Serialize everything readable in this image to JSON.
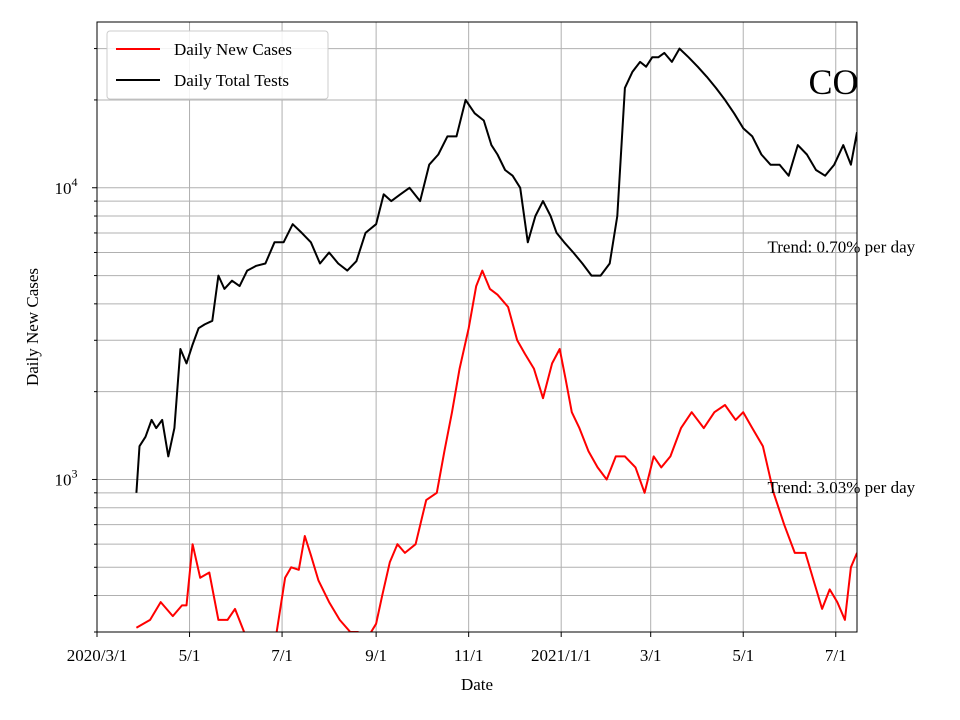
{
  "chart_data": {
    "type": "line",
    "xlabel": "Date",
    "ylabel": "Daily New Cases",
    "yscale": "log",
    "ylim": [
      300,
      37000
    ],
    "xlim": [
      "2020-03-01",
      "2021-07-15"
    ],
    "grid": true,
    "legend_position": "top-left",
    "x_ticks": [
      {
        "date": "2020-03-01",
        "label": "2020/3/1"
      },
      {
        "date": "2020-05-01",
        "label": "5/1"
      },
      {
        "date": "2020-07-01",
        "label": "7/1"
      },
      {
        "date": "2020-09-01",
        "label": "9/1"
      },
      {
        "date": "2020-11-01",
        "label": "11/1"
      },
      {
        "date": "2021-01-01",
        "label": "2021/1/1"
      },
      {
        "date": "2021-03-01",
        "label": "3/1"
      },
      {
        "date": "2021-05-01",
        "label": "5/1"
      },
      {
        "date": "2021-07-01",
        "label": "7/1"
      }
    ],
    "y_ticks": [
      {
        "value": 1000,
        "base": "10",
        "exp": "3"
      },
      {
        "value": 10000,
        "base": "10",
        "exp": "4"
      }
    ],
    "series": [
      {
        "name": "Daily New Cases",
        "color": "#ff0000",
        "x": [
          "2020-03-27",
          "2020-04-05",
          "2020-04-12",
          "2020-04-20",
          "2020-04-26",
          "2020-04-29",
          "2020-05-03",
          "2020-05-08",
          "2020-05-14",
          "2020-05-20",
          "2020-05-26",
          "2020-05-31",
          "2020-06-06",
          "2020-06-15",
          "2020-06-27",
          "2020-07-03",
          "2020-07-07",
          "2020-07-12",
          "2020-07-16",
          "2020-07-20",
          "2020-07-25",
          "2020-08-01",
          "2020-08-08",
          "2020-08-15",
          "2020-08-20",
          "2020-08-27",
          "2020-09-01",
          "2020-09-05",
          "2020-09-10",
          "2020-09-15",
          "2020-09-20",
          "2020-09-27",
          "2020-10-04",
          "2020-10-11",
          "2020-10-16",
          "2020-10-21",
          "2020-10-26",
          "2020-11-01",
          "2020-11-06",
          "2020-11-10",
          "2020-11-15",
          "2020-11-20",
          "2020-11-27",
          "2020-12-03",
          "2020-12-08",
          "2020-12-14",
          "2020-12-20",
          "2020-12-26",
          "2020-12-31",
          "2021-01-04",
          "2021-01-08",
          "2021-01-13",
          "2021-01-19",
          "2021-01-25",
          "2021-01-31",
          "2021-02-06",
          "2021-02-12",
          "2021-02-19",
          "2021-02-25",
          "2021-03-03",
          "2021-03-08",
          "2021-03-14",
          "2021-03-21",
          "2021-03-28",
          "2021-04-05",
          "2021-04-12",
          "2021-04-19",
          "2021-04-26",
          "2021-05-01",
          "2021-05-07",
          "2021-05-14",
          "2021-05-21",
          "2021-05-28",
          "2021-06-04",
          "2021-06-11",
          "2021-06-17",
          "2021-06-22",
          "2021-06-27",
          "2021-07-02",
          "2021-07-07",
          "2021-07-11",
          "2021-07-15"
        ],
        "values": [
          310,
          330,
          380,
          340,
          370,
          370,
          600,
          460,
          480,
          330,
          330,
          360,
          300,
          280,
          290,
          460,
          500,
          490,
          640,
          550,
          450,
          380,
          330,
          300,
          300,
          290,
          320,
          400,
          520,
          600,
          560,
          600,
          850,
          900,
          1250,
          1700,
          2400,
          3300,
          4600,
          5200,
          4500,
          4300,
          3900,
          3000,
          2700,
          2400,
          1900,
          2500,
          2800,
          2200,
          1700,
          1500,
          1250,
          1100,
          1000,
          1200,
          1200,
          1100,
          900,
          1200,
          1100,
          1200,
          1500,
          1700,
          1500,
          1700,
          1800,
          1600,
          1700,
          1500,
          1300,
          900,
          700,
          560,
          560,
          440,
          360,
          420,
          380,
          330,
          500,
          560
        ]
      },
      {
        "name": "Daily Total Tests",
        "color": "#000000",
        "x": [
          "2020-03-27",
          "2020-03-29",
          "2020-04-02",
          "2020-04-06",
          "2020-04-09",
          "2020-04-13",
          "2020-04-17",
          "2020-04-21",
          "2020-04-25",
          "2020-04-29",
          "2020-05-03",
          "2020-05-07",
          "2020-05-11",
          "2020-05-16",
          "2020-05-20",
          "2020-05-24",
          "2020-05-29",
          "2020-06-03",
          "2020-06-08",
          "2020-06-14",
          "2020-06-20",
          "2020-06-26",
          "2020-07-02",
          "2020-07-08",
          "2020-07-14",
          "2020-07-20",
          "2020-07-26",
          "2020-08-01",
          "2020-08-07",
          "2020-08-13",
          "2020-08-19",
          "2020-08-25",
          "2020-09-01",
          "2020-09-06",
          "2020-09-11",
          "2020-09-17",
          "2020-09-23",
          "2020-09-30",
          "2020-10-06",
          "2020-10-12",
          "2020-10-18",
          "2020-10-24",
          "2020-10-30",
          "2020-11-05",
          "2020-11-11",
          "2020-11-16",
          "2020-11-20",
          "2020-11-25",
          "2020-11-30",
          "2020-12-05",
          "2020-12-10",
          "2020-12-15",
          "2020-12-20",
          "2020-12-25",
          "2020-12-29",
          "2021-01-03",
          "2021-01-09",
          "2021-01-15",
          "2021-01-21",
          "2021-01-27",
          "2021-02-02",
          "2021-02-07",
          "2021-02-12",
          "2021-02-17",
          "2021-02-22",
          "2021-02-26",
          "2021-03-02",
          "2021-03-06",
          "2021-03-10",
          "2021-03-15",
          "2021-03-20",
          "2021-03-26",
          "2021-04-01",
          "2021-04-07",
          "2021-04-13",
          "2021-04-19",
          "2021-04-25",
          "2021-05-01",
          "2021-05-07",
          "2021-05-13",
          "2021-05-19",
          "2021-05-25",
          "2021-05-31",
          "2021-06-06",
          "2021-06-12",
          "2021-06-18",
          "2021-06-24",
          "2021-06-30",
          "2021-07-06",
          "2021-07-11",
          "2021-07-15"
        ],
        "values": [
          900,
          1300,
          1400,
          1600,
          1500,
          1600,
          1200,
          1500,
          2800,
          2500,
          2900,
          3300,
          3400,
          3500,
          5000,
          4500,
          4800,
          4600,
          5200,
          5400,
          5500,
          6500,
          6500,
          7500,
          7000,
          6500,
          5500,
          6000,
          5500,
          5200,
          5600,
          7000,
          7500,
          9500,
          9000,
          9500,
          10000,
          9000,
          12000,
          13000,
          15000,
          15000,
          20000,
          18000,
          17000,
          14000,
          13000,
          11500,
          11000,
          10000,
          6500,
          8000,
          9000,
          8000,
          7000,
          6500,
          6000,
          5500,
          5000,
          5000,
          5500,
          8000,
          22000,
          25000,
          27000,
          26000,
          28000,
          28000,
          29000,
          27000,
          30000,
          28000,
          26000,
          24000,
          22000,
          20000,
          18000,
          16000,
          15000,
          13000,
          12000,
          12000,
          11000,
          14000,
          13000,
          11500,
          11000,
          12000,
          14000,
          12000,
          15500
        ]
      }
    ],
    "annotations": [
      {
        "text": "Trend: 0.70% per day",
        "date": "2021-05-17",
        "value": 6000
      },
      {
        "text": "Trend: 3.03% per day",
        "date": "2021-05-17",
        "value": 900
      },
      {
        "text": "CO",
        "date": "2021-06-13",
        "value": 21000
      }
    ]
  }
}
